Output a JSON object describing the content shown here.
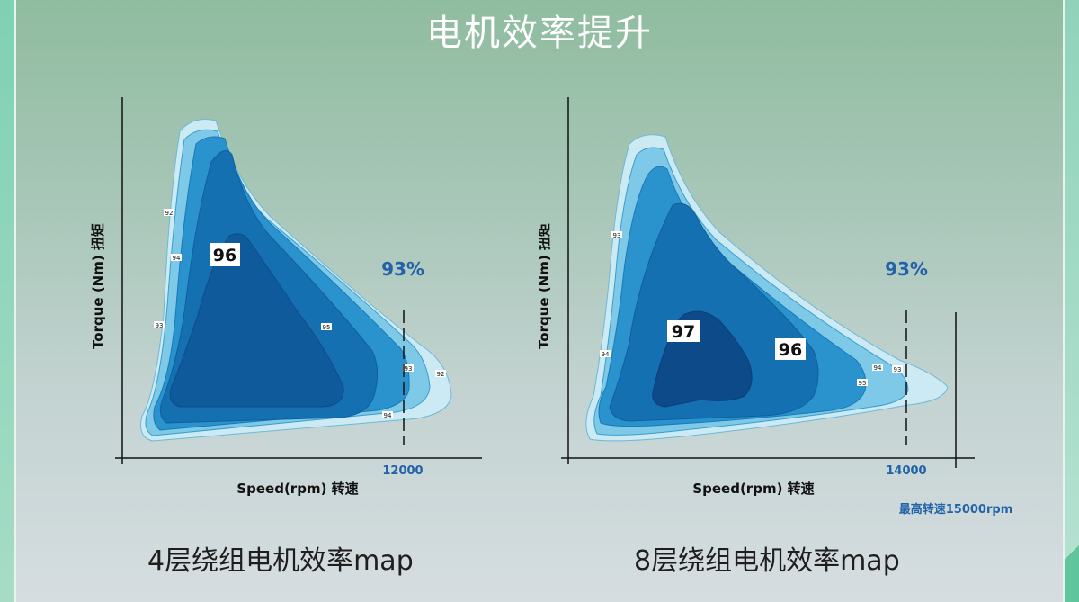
{
  "page": {
    "title": "电机效率提升"
  },
  "chart_data": [
    {
      "type": "contour",
      "xlabel": "Speed(rpm) 转速",
      "ylabel": "Torque (Nm) 扭矩",
      "peak_label": "96",
      "efficiency_callout": "93%",
      "speed_marker": "12000",
      "contour_labels": [
        "92",
        "94",
        "93",
        "95",
        "93",
        "92",
        "94"
      ],
      "levels": [
        92,
        93,
        94,
        95,
        96
      ],
      "colors": [
        "#cbeaf3",
        "#7ec9e7",
        "#2a93cd",
        "#1570b2",
        "#0f5a9a"
      ],
      "caption": "4层绕组电机效率map"
    },
    {
      "type": "contour",
      "xlabel": "Speed(rpm) 转速",
      "ylabel": "Torque (Nm) 扭矩",
      "peak_label": "97",
      "second_label": "96",
      "efficiency_callout": "93%",
      "speed_marker": "14000",
      "max_speed_note": "最高转速15000rpm",
      "contour_labels": [
        "93",
        "94",
        "94",
        "93",
        "95"
      ],
      "levels": [
        93,
        94,
        95,
        96,
        97
      ],
      "colors": [
        "#cbeaf3",
        "#7ec9e7",
        "#2a93cd",
        "#1570b2",
        "#0d4a8a"
      ],
      "caption": "8层绕组电机效率map"
    }
  ]
}
